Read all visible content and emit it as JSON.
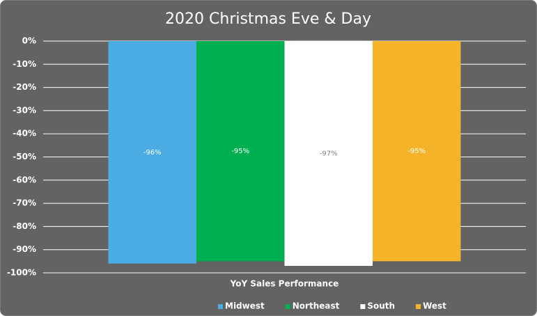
{
  "chart_data": {
    "type": "bar",
    "title": "2020 Christmas Eve & Day",
    "categories": [
      "YoY Sales Performance"
    ],
    "series": [
      {
        "name": "Midwest",
        "color": "#4aace2",
        "label_color": "#ffffff",
        "values": [
          -96
        ],
        "value_labels": [
          "-96%"
        ]
      },
      {
        "name": "Northeast",
        "color": "#00b050",
        "label_color": "#ffffff",
        "values": [
          -95
        ],
        "value_labels": [
          "-95%"
        ]
      },
      {
        "name": "South",
        "color": "#ffffff",
        "label_color": "#808080",
        "values": [
          -97
        ],
        "value_labels": [
          "-97%"
        ]
      },
      {
        "name": "West",
        "color": "#f4b328",
        "label_color": "#ffffff",
        "values": [
          -95
        ],
        "value_labels": [
          "-95%"
        ]
      }
    ],
    "ylim": [
      -100,
      0
    ],
    "yticks": [
      {
        "value": 0,
        "label": "0%"
      },
      {
        "value": -10,
        "label": "-10%"
      },
      {
        "value": -20,
        "label": "-20%"
      },
      {
        "value": -30,
        "label": "-30%"
      },
      {
        "value": -40,
        "label": "-40%"
      },
      {
        "value": -50,
        "label": "-50%"
      },
      {
        "value": -60,
        "label": "-60%"
      },
      {
        "value": -70,
        "label": "-70%"
      },
      {
        "value": -80,
        "label": "-80%"
      },
      {
        "value": -90,
        "label": "-90%"
      },
      {
        "value": -100,
        "label": "-100%"
      }
    ],
    "grid": true,
    "legend": "bottom"
  }
}
